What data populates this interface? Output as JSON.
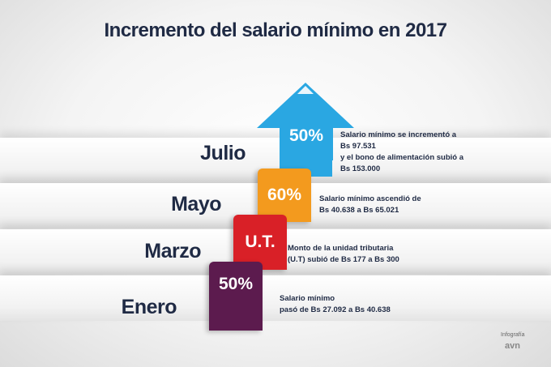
{
  "title": "Incremento del salario mínimo en 2017",
  "steps": [
    {
      "month": "Julio",
      "tab": "50%",
      "color": "#2aa7e2",
      "lines": [
        "Salario mínimo se incrementó a",
        "Bs 97.531",
        "y el bono de alimentación subió a",
        "Bs 153.000"
      ]
    },
    {
      "month": "Mayo",
      "tab": "60%",
      "color": "#f39a1e",
      "lines": [
        "Salario mínimo ascendió de",
        "Bs 40.638 a Bs 65.021"
      ]
    },
    {
      "month": "Marzo",
      "tab": "U.T.",
      "color": "#d92027",
      "lines": [
        "Monto de la unidad tributaria",
        "(U.T) subió de Bs 177 a Bs 300"
      ]
    },
    {
      "month": "Enero",
      "tab": "50%",
      "color": "#5c1b4e",
      "lines": [
        "Salario mínimo",
        "pasó de Bs 27.092 a Bs 40.638"
      ]
    }
  ],
  "credit": {
    "label": "Infografía",
    "logo": "avn"
  }
}
